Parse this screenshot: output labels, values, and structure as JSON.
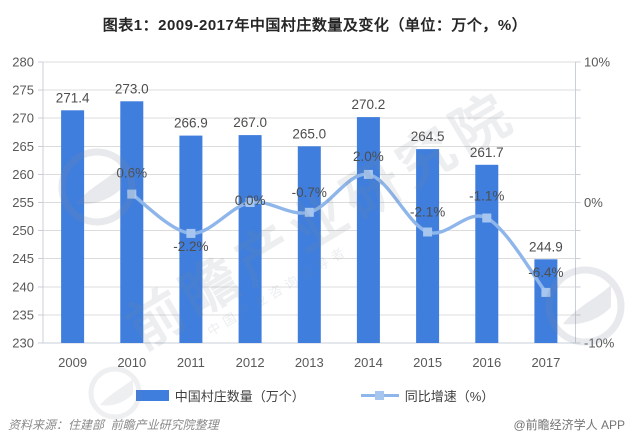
{
  "title": "图表1：2009-2017年中国村庄数量及变化（单位：万个，%）",
  "chart_data": {
    "type": "bar",
    "subtype": "bar-with-line-overlay",
    "categories": [
      "2009",
      "2010",
      "2011",
      "2012",
      "2013",
      "2014",
      "2015",
      "2016",
      "2017"
    ],
    "series": [
      {
        "name": "中国村庄数量（万个）",
        "type": "bar",
        "axis": "left",
        "values": [
          271.4,
          273.0,
          266.9,
          267.0,
          265.0,
          270.2,
          264.5,
          261.7,
          244.9
        ],
        "labels": [
          "271.4",
          "273.0",
          "266.9",
          "267.0",
          "265.0",
          "270.2",
          "264.5",
          "261.7",
          "244.9"
        ]
      },
      {
        "name": "同比增速（%）",
        "type": "line",
        "axis": "right",
        "values": [
          null,
          0.6,
          -2.2,
          0.0,
          -0.7,
          2.0,
          -2.1,
          -1.1,
          -6.4
        ],
        "labels": [
          null,
          "0.6%",
          "-2.2%",
          "0.0%",
          "-0.7%",
          "2.0%",
          "-2.1%",
          "-1.1%",
          "-6.4%"
        ],
        "label_dy": [
          null,
          -21,
          13,
          -2,
          -20,
          -18,
          -20,
          -22,
          -20
        ]
      }
    ],
    "left_axis": {
      "min": 230,
      "max": 280,
      "step": 5,
      "tick_labels": [
        "280",
        "275",
        "270",
        "265",
        "260",
        "255",
        "250",
        "245",
        "240",
        "235",
        "230"
      ]
    },
    "right_axis": {
      "min": -10,
      "max": 10,
      "tick_values": [
        10,
        0,
        -10
      ],
      "tick_labels": [
        "10%",
        "0%",
        "-10%"
      ]
    },
    "grid": true,
    "legend_position": "bottom"
  },
  "colors": {
    "bar": "#3f7edd",
    "line": "#8fb6ea",
    "marker": "#a6c6ef",
    "grid": "#dcdcdc",
    "axis_line": "#c9cfd8",
    "axis_text": "#595959",
    "value_text": "#4d4d4d",
    "title_text": "#262626"
  },
  "legend": {
    "items": [
      {
        "label": "中国村庄数量（万个）",
        "swatch": "bar-swatch"
      },
      {
        "label": "同比增速（%）",
        "swatch": "line-swatch"
      }
    ]
  },
  "footer": {
    "source": "资料来源：住建部  前瞻产业研究院整理",
    "credit": "@前瞻经济学人 APP"
  },
  "watermark": {
    "brand_text": "前瞻产业研究院",
    "sub_text": "中国产业咨询领导者",
    "logo_name": "qianzhan-globe-logo"
  }
}
